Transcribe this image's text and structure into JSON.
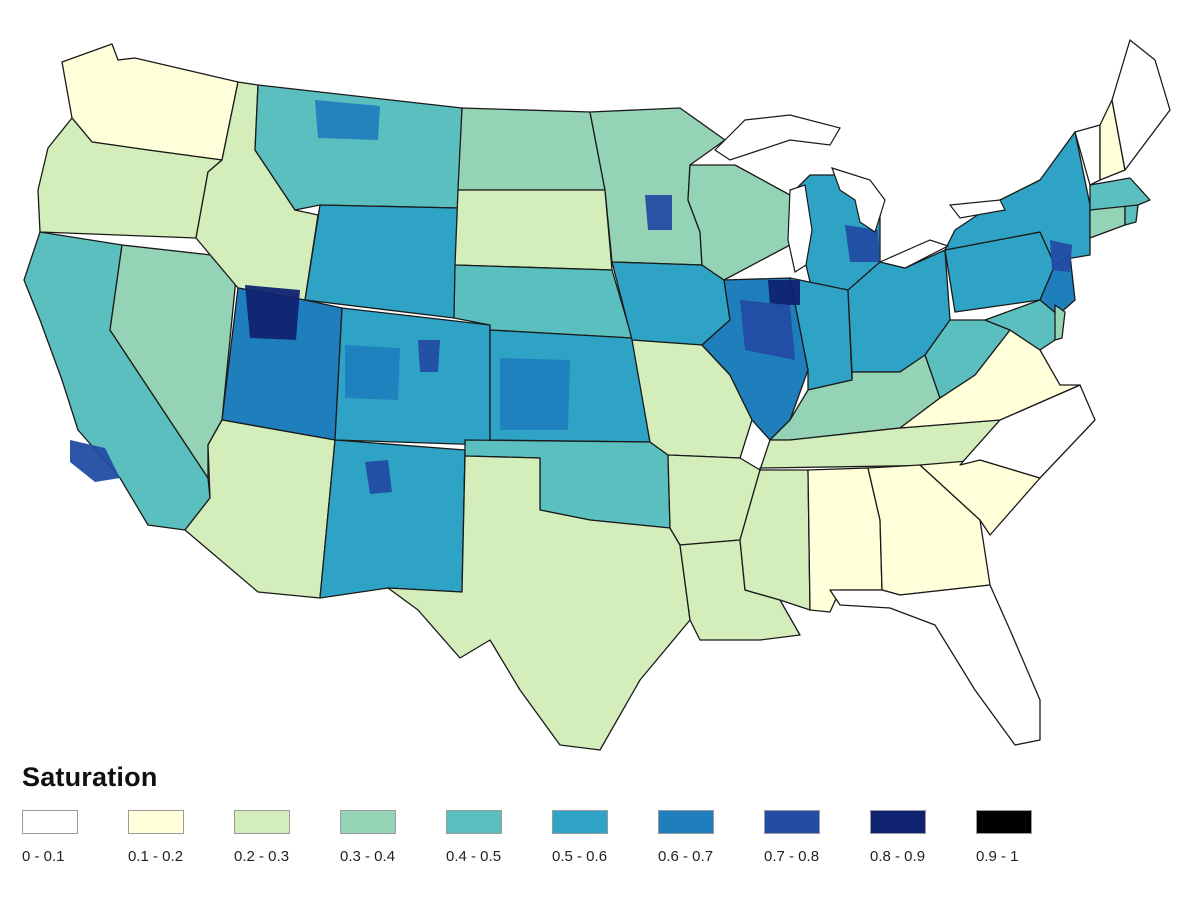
{
  "legend": {
    "title": "Saturation",
    "items": [
      {
        "label": "0 - 0.1",
        "color": "#ffffff"
      },
      {
        "label": "0.1 - 0.2",
        "color": "#ffffd9"
      },
      {
        "label": "0.2 - 0.3",
        "color": "#d3eebb"
      },
      {
        "label": "0.3 - 0.4",
        "color": "#94d3b6"
      },
      {
        "label": "0.4 - 0.5",
        "color": "#5cbfbf"
      },
      {
        "label": "0.5 - 0.6",
        "color": "#2ea3c5"
      },
      {
        "label": "0.6 - 0.7",
        "color": "#1f7fbd"
      },
      {
        "label": "0.7 - 0.8",
        "color": "#234da3"
      },
      {
        "label": "0.8 - 0.9",
        "color": "#0f2370"
      },
      {
        "label": "0.9 - 1",
        "color": "#000000"
      }
    ]
  },
  "map": {
    "region": "Contiguous United States",
    "regions": [
      {
        "name": "Washington",
        "class": "0.1 - 0.2"
      },
      {
        "name": "Oregon",
        "class": "0.2 - 0.3"
      },
      {
        "name": "California",
        "class": "0.4 - 0.5"
      },
      {
        "name": "Nevada",
        "class": "0.3 - 0.4"
      },
      {
        "name": "Idaho",
        "class": "0.2 - 0.3"
      },
      {
        "name": "Montana",
        "class": "0.4 - 0.5"
      },
      {
        "name": "Wyoming",
        "class": "0.5 - 0.6"
      },
      {
        "name": "Utah",
        "class": "0.6 - 0.7"
      },
      {
        "name": "Colorado",
        "class": "0.5 - 0.6"
      },
      {
        "name": "Arizona",
        "class": "0.2 - 0.3"
      },
      {
        "name": "New Mexico",
        "class": "0.5 - 0.6"
      },
      {
        "name": "North Dakota",
        "class": "0.3 - 0.4"
      },
      {
        "name": "South Dakota",
        "class": "0.2 - 0.3"
      },
      {
        "name": "Nebraska",
        "class": "0.4 - 0.5"
      },
      {
        "name": "Kansas",
        "class": "0.5 - 0.6"
      },
      {
        "name": "Oklahoma",
        "class": "0.4 - 0.5"
      },
      {
        "name": "Texas",
        "class": "0.2 - 0.3"
      },
      {
        "name": "Minnesota",
        "class": "0.3 - 0.4"
      },
      {
        "name": "Iowa",
        "class": "0.5 - 0.6"
      },
      {
        "name": "Missouri",
        "class": "0.2 - 0.3"
      },
      {
        "name": "Arkansas",
        "class": "0.2 - 0.3"
      },
      {
        "name": "Louisiana",
        "class": "0.2 - 0.3"
      },
      {
        "name": "Wisconsin",
        "class": "0.3 - 0.4"
      },
      {
        "name": "Illinois",
        "class": "0.6 - 0.7"
      },
      {
        "name": "Michigan",
        "class": "0.5 - 0.6"
      },
      {
        "name": "Indiana",
        "class": "0.5 - 0.6"
      },
      {
        "name": "Ohio",
        "class": "0.5 - 0.6"
      },
      {
        "name": "Kentucky",
        "class": "0.3 - 0.4"
      },
      {
        "name": "Tennessee",
        "class": "0.2 - 0.3"
      },
      {
        "name": "Mississippi",
        "class": "0.2 - 0.3"
      },
      {
        "name": "Alabama",
        "class": "0.1 - 0.2"
      },
      {
        "name": "Georgia",
        "class": "0.1 - 0.2"
      },
      {
        "name": "Florida",
        "class": "0 - 0.1"
      },
      {
        "name": "South Carolina",
        "class": "0.1 - 0.2"
      },
      {
        "name": "North Carolina",
        "class": "0 - 0.1"
      },
      {
        "name": "Virginia",
        "class": "0.1 - 0.2"
      },
      {
        "name": "West Virginia",
        "class": "0.4 - 0.5"
      },
      {
        "name": "Pennsylvania",
        "class": "0.5 - 0.6"
      },
      {
        "name": "New York",
        "class": "0.5 - 0.6"
      },
      {
        "name": "New Jersey",
        "class": "0.6 - 0.7"
      },
      {
        "name": "Maryland",
        "class": "0.4 - 0.5"
      },
      {
        "name": "Delaware",
        "class": "0.3 - 0.4"
      },
      {
        "name": "Connecticut",
        "class": "0.3 - 0.4"
      },
      {
        "name": "Rhode Island",
        "class": "0.4 - 0.5"
      },
      {
        "name": "Massachusetts",
        "class": "0.4 - 0.5"
      },
      {
        "name": "Vermont",
        "class": "0 - 0.1"
      },
      {
        "name": "New Hampshire",
        "class": "0.1 - 0.2"
      },
      {
        "name": "Maine",
        "class": "0 - 0.1"
      }
    ],
    "hotspots": [
      {
        "name": "Northern Utah",
        "class": "0.8 - 0.9"
      },
      {
        "name": "Chicago area",
        "class": "0.8 - 0.9"
      },
      {
        "name": "Detroit area",
        "class": "0.7 - 0.8"
      },
      {
        "name": "Minneapolis area",
        "class": "0.7 - 0.8"
      },
      {
        "name": "Denver area",
        "class": "0.7 - 0.8"
      },
      {
        "name": "Los Angeles area",
        "class": "0.7 - 0.8"
      },
      {
        "name": "Northern New Jersey",
        "class": "0.7 - 0.8"
      },
      {
        "name": "Northwest New Mexico",
        "class": "0.7 - 0.8"
      },
      {
        "name": "Western Kansas",
        "class": "0.6 - 0.7"
      },
      {
        "name": "Western Colorado",
        "class": "0.6 - 0.7"
      },
      {
        "name": "Northern Montana",
        "class": "0.6 - 0.7"
      },
      {
        "name": "Central Illinois",
        "class": "0.7 - 0.8"
      }
    ]
  }
}
